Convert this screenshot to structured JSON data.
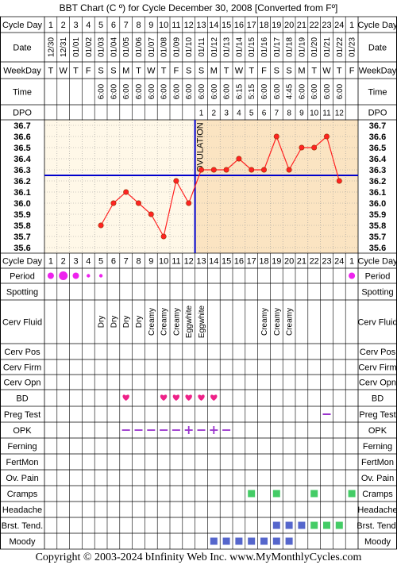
{
  "title": "BBT Chart (C º) for Cycle December 30, 2008  [Converted from Fº]",
  "copyright": "Copyright © 2003-2024 bInfinity Web Inc.    www.MyMonthlyCycles.com",
  "colors": {
    "grid": "#000000",
    "chart_bg_pre": "#fff8e8",
    "chart_bg_post": "#fbe4c2",
    "line": "#ff2222",
    "coverline": "#0000cc",
    "period": "#ee22ee",
    "bd": "#ee2288",
    "opk": "#9933cc",
    "preg_test": "#9933cc",
    "cramps": "#44cc66",
    "brst_tend_blue": "#5566cc",
    "brst_tend_green": "#44cc66",
    "moody": "#5566cc"
  },
  "row_labels": {
    "cycle_day": "Cycle Day",
    "date": "Date",
    "weekday": "WeekDay",
    "time": "Time",
    "dpo": "DPO",
    "period": "Period",
    "spotting": "Spotting",
    "cerv_fluid": "Cerv Fluid",
    "cerv_pos": "Cerv Pos",
    "cerv_firm": "Cerv Firm",
    "cerv_opn": "Cerv Opn",
    "bd": "BD",
    "preg_test": "Preg Test",
    "opk": "OPK",
    "ferning": "Ferning",
    "fertmon": "FertMon",
    "ov_pain": "Ov. Pain",
    "cramps": "Cramps",
    "headache": "Headache",
    "brst_tend": "Brst. Tend.",
    "moody": "Moody"
  },
  "columns": {
    "cycle_days": [
      "1",
      "2",
      "3",
      "4",
      "5",
      "6",
      "7",
      "8",
      "9",
      "10",
      "11",
      "12",
      "13",
      "14",
      "15",
      "16",
      "17",
      "18",
      "19",
      "20",
      "21",
      "22",
      "23",
      "24",
      "1"
    ],
    "dates": [
      "12/30",
      "12/31",
      "01/01",
      "01/02",
      "01/03",
      "01/04",
      "01/05",
      "01/06",
      "01/07",
      "01/08",
      "01/09",
      "01/10",
      "01/11",
      "01/12",
      "01/13",
      "01/14",
      "01/15",
      "01/16",
      "01/17",
      "01/18",
      "01/19",
      "01/20",
      "01/21",
      "01/22",
      "01/23"
    ],
    "weekdays": [
      "T",
      "W",
      "T",
      "F",
      "S",
      "S",
      "M",
      "T",
      "W",
      "T",
      "F",
      "S",
      "S",
      "M",
      "T",
      "W",
      "T",
      "F",
      "S",
      "S",
      "M",
      "T",
      "W",
      "T",
      "F"
    ],
    "times": [
      "",
      "",
      "",
      "",
      "6:00",
      "6:00",
      "6:00",
      "6:00",
      "6:00",
      "6:00",
      "6:00",
      "6:00",
      "6:00",
      "6:00",
      "6:00",
      "6:15",
      "5:15",
      "6:00",
      "6:00",
      "4:45",
      "6:00",
      "6:00",
      "6:00",
      "6:00",
      ""
    ],
    "dpo": [
      "",
      "",
      "",
      "",
      "",
      "",
      "",
      "",
      "",
      "",
      "",
      "",
      "1",
      "2",
      "3",
      "4",
      "5",
      "6",
      "7",
      "8",
      "9",
      "10",
      "11",
      "12",
      ""
    ]
  },
  "chart_data": {
    "type": "line",
    "title": "BBT Chart (C º) for Cycle December 30, 2008  [Converted from Fº]",
    "x": [
      1,
      2,
      3,
      4,
      5,
      6,
      7,
      8,
      9,
      10,
      11,
      12,
      13,
      14,
      15,
      16,
      17,
      18,
      19,
      20,
      21,
      22,
      23,
      24,
      25
    ],
    "y_ticks": [
      "36.7",
      "36.6",
      "36.5",
      "36.4",
      "36.3",
      "36.2",
      "36.1",
      "36.0",
      "35.9",
      "35.8",
      "35.7",
      "35.6"
    ],
    "ylim": [
      35.6,
      36.7
    ],
    "series": [
      {
        "values": [
          null,
          null,
          null,
          null,
          35.8,
          36.0,
          36.1,
          36.0,
          35.9,
          35.7,
          36.2,
          36.0,
          36.3,
          36.3,
          36.3,
          36.4,
          36.3,
          36.3,
          36.6,
          36.3,
          36.5,
          36.5,
          36.6,
          36.2,
          null
        ]
      }
    ],
    "coverline": 36.25,
    "ovulation_day": 12,
    "ovulation_label": "OVULATION"
  },
  "symptoms": {
    "period": {
      "markers": [
        {
          "day": 1,
          "size": "medium"
        },
        {
          "day": 2,
          "size": "large"
        },
        {
          "day": 3,
          "size": "medium"
        },
        {
          "day": 4,
          "size": "small"
        },
        {
          "day": 5,
          "size": "small"
        },
        {
          "day": 25,
          "size": "medium"
        }
      ]
    },
    "cerv_fluid": {
      "entries": [
        {
          "day": 5,
          "value": "Dry"
        },
        {
          "day": 6,
          "value": "Dry"
        },
        {
          "day": 7,
          "value": "Dry"
        },
        {
          "day": 8,
          "value": "Dry"
        },
        {
          "day": 9,
          "value": "Creamy"
        },
        {
          "day": 10,
          "value": "Creamy"
        },
        {
          "day": 11,
          "value": "Creamy"
        },
        {
          "day": 12,
          "value": "Eggwhite"
        },
        {
          "day": 13,
          "value": "Eggwhite"
        },
        {
          "day": 18,
          "value": "Creamy"
        },
        {
          "day": 19,
          "value": "Creamy"
        },
        {
          "day": 20,
          "value": "Creamy"
        }
      ]
    },
    "bd": {
      "days": [
        7,
        10,
        11,
        12,
        13,
        14
      ]
    },
    "preg_test": {
      "days": [
        {
          "day": 23,
          "result": "negative"
        }
      ]
    },
    "opk": {
      "days": [
        {
          "day": 7,
          "result": "negative"
        },
        {
          "day": 8,
          "result": "negative"
        },
        {
          "day": 9,
          "result": "negative"
        },
        {
          "day": 10,
          "result": "negative"
        },
        {
          "day": 11,
          "result": "negative"
        },
        {
          "day": 12,
          "result": "positive"
        },
        {
          "day": 13,
          "result": "negative"
        },
        {
          "day": 14,
          "result": "positive"
        },
        {
          "day": 15,
          "result": "negative"
        }
      ]
    },
    "cramps": {
      "days": [
        17,
        19,
        22,
        25
      ]
    },
    "brst_tend": {
      "days": [
        {
          "day": 19,
          "tone": "blue"
        },
        {
          "day": 20,
          "tone": "blue"
        },
        {
          "day": 21,
          "tone": "blue"
        },
        {
          "day": 22,
          "tone": "green"
        },
        {
          "day": 23,
          "tone": "green"
        },
        {
          "day": 24,
          "tone": "green"
        }
      ]
    },
    "moody": {
      "days": [
        14,
        15,
        16,
        17,
        18,
        19,
        20
      ]
    }
  }
}
